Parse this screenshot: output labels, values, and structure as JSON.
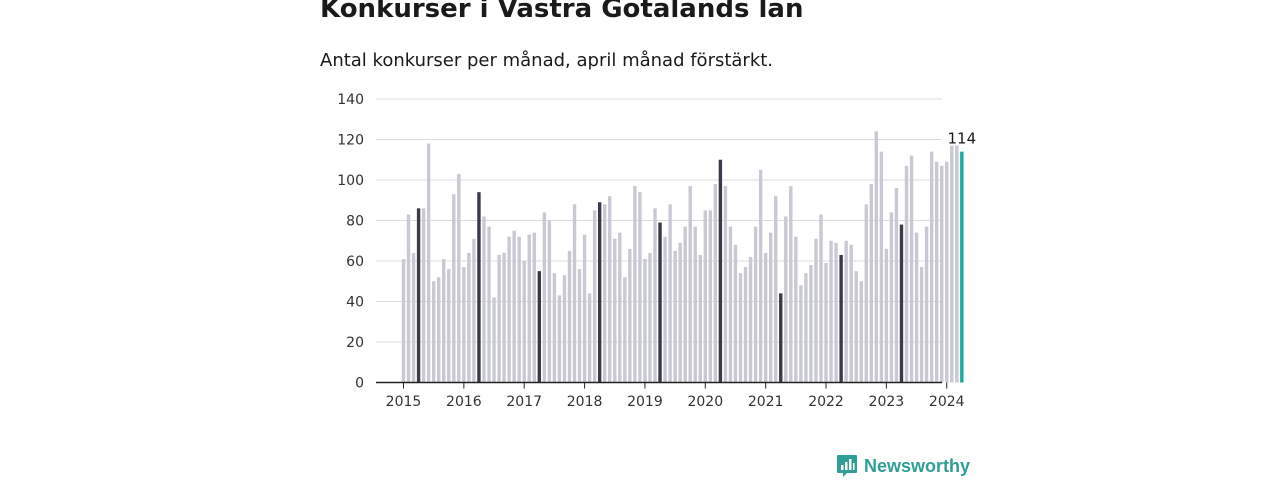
{
  "title": "Konkurser i Västra Götalands län",
  "subtitle": "Antal konkurser per månad, april månad förstärkt.",
  "brand": {
    "name": "Newsworthy",
    "logo_icon": "bar-chart-logo-icon"
  },
  "colors": {
    "bar": "#c9c9d3",
    "highlight": "#3a3a48",
    "latest": "#1aa99a",
    "grid": "#dcdcdc",
    "axis": "#222222",
    "brand": "#2f9e94"
  },
  "chart_data": {
    "type": "bar",
    "title": "Antal konkurser per månad, april månad förstärkt.",
    "xlabel": "",
    "ylabel": "",
    "ylim": [
      0,
      140
    ],
    "yticks": [
      0,
      20,
      40,
      60,
      80,
      100,
      120,
      140
    ],
    "xtick_labels": [
      "2015",
      "2016",
      "2017",
      "2018",
      "2019",
      "2020",
      "2021",
      "2022",
      "2023",
      "2024"
    ],
    "start": "2015-01",
    "highlight_month": "april",
    "grid": true,
    "annotation": {
      "month": "2024-04",
      "label": "114"
    },
    "series": [
      {
        "year": 2015,
        "values": [
          61,
          83,
          64,
          86,
          86,
          118,
          50,
          52,
          61,
          56,
          93,
          103
        ]
      },
      {
        "year": 2016,
        "values": [
          57,
          64,
          71,
          94,
          82,
          77,
          42,
          63,
          64,
          72,
          75,
          72
        ]
      },
      {
        "year": 2017,
        "values": [
          60,
          73,
          74,
          55,
          84,
          80,
          54,
          43,
          53,
          65,
          88,
          56
        ]
      },
      {
        "year": 2018,
        "values": [
          73,
          44,
          85,
          89,
          88,
          92,
          71,
          74,
          52,
          66,
          97,
          94
        ]
      },
      {
        "year": 2019,
        "values": [
          61,
          64,
          86,
          79,
          72,
          88,
          65,
          69,
          77,
          97,
          77,
          63
        ]
      },
      {
        "year": 2020,
        "values": [
          85,
          85,
          98,
          110,
          97,
          77,
          68,
          54,
          57,
          62,
          77,
          105
        ]
      },
      {
        "year": 2021,
        "values": [
          64,
          74,
          92,
          44,
          82,
          97,
          72,
          48,
          54,
          58,
          71,
          83
        ]
      },
      {
        "year": 2022,
        "values": [
          59,
          70,
          69,
          63,
          70,
          68,
          55,
          50,
          88,
          98,
          124,
          114
        ]
      },
      {
        "year": 2023,
        "values": [
          66,
          84,
          96,
          78,
          107,
          112,
          74,
          57,
          77,
          114,
          109,
          107
        ]
      },
      {
        "year": 2024,
        "values": [
          109,
          117,
          117,
          114
        ]
      }
    ]
  }
}
